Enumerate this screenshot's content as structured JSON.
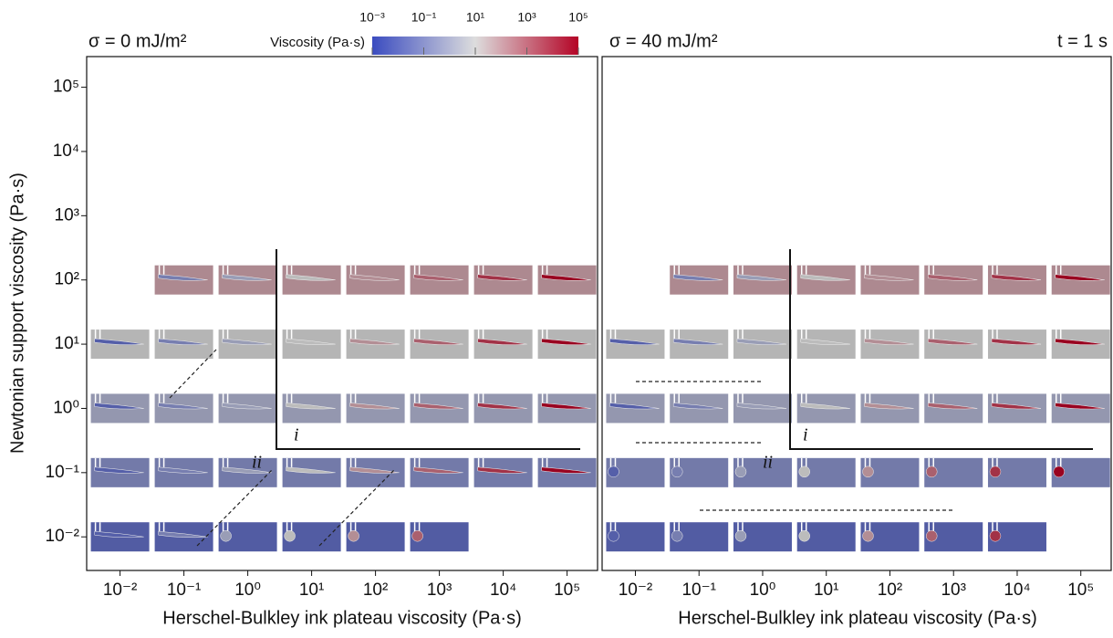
{
  "chart_data": [
    {
      "type": "image_grid",
      "title": "σ = 0 mJ/m²",
      "xlabel": "Herschel-Bulkley ink plateau viscosity (Pa·s)",
      "ylabel": "Newtonian support viscosity (Pa·s)",
      "log_scale": true,
      "xlim": [
        0.003,
        300000
      ],
      "ylim": [
        0.003,
        300000
      ],
      "xticks": [
        {
          "value": 0.01,
          "label": "10⁻²"
        },
        {
          "value": 0.1,
          "label": "10⁻¹"
        },
        {
          "value": 1,
          "label": "10⁰"
        },
        {
          "value": 10,
          "label": "10¹"
        },
        {
          "value": 100,
          "label": "10²"
        },
        {
          "value": 1000,
          "label": "10³"
        },
        {
          "value": 10000,
          "label": "10⁴"
        },
        {
          "value": 100000,
          "label": "10⁵"
        }
      ],
      "yticks": [
        {
          "value": 0.01,
          "label": "10⁻²"
        },
        {
          "value": 0.1,
          "label": "10⁻¹"
        },
        {
          "value": 1,
          "label": "10⁰"
        },
        {
          "value": 10,
          "label": "10¹"
        },
        {
          "value": 100,
          "label": "10²"
        },
        {
          "value": 1000,
          "label": "10³"
        },
        {
          "value": 10000,
          "label": "10⁴"
        },
        {
          "value": 100000,
          "label": "10⁵"
        }
      ],
      "annotations": [
        "i",
        "ii"
      ],
      "colorbar": {
        "label": "Viscosity (Pa·s)",
        "lim": [
          0.001,
          100000
        ],
        "colors": [
          "#3b4cc0",
          "#dddddd",
          "#b40426"
        ],
        "ticks": [
          {
            "value": 0.001,
            "label": "10⁻³"
          },
          {
            "value": 0.1,
            "label": "10⁻¹"
          },
          {
            "value": 10,
            "label": "10¹"
          },
          {
            "value": 1000,
            "label": "10³"
          },
          {
            "value": 100000,
            "label": "10⁵"
          }
        ]
      }
    },
    {
      "type": "image_grid",
      "title": "σ = 40 mJ/m²",
      "time_label": "t = 1 s",
      "xlabel": "Herschel-Bulkley ink plateau viscosity (Pa·s)",
      "log_scale": true,
      "xlim": [
        0.003,
        300000
      ],
      "ylim": [
        0.003,
        300000
      ],
      "xticks": [
        {
          "value": 0.01,
          "label": "10⁻²"
        },
        {
          "value": 0.1,
          "label": "10⁻¹"
        },
        {
          "value": 1,
          "label": "10⁰"
        },
        {
          "value": 10,
          "label": "10¹"
        },
        {
          "value": 100,
          "label": "10²"
        },
        {
          "value": 1000,
          "label": "10³"
        },
        {
          "value": 10000,
          "label": "10⁴"
        },
        {
          "value": 100000,
          "label": "10⁵"
        }
      ],
      "annotations": [
        "i",
        "ii"
      ]
    }
  ]
}
